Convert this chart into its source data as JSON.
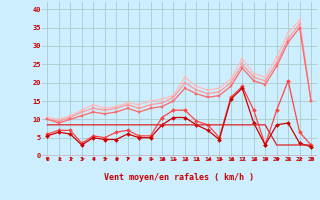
{
  "xlabel": "Vent moyen/en rafales ( km/h )",
  "background_color": "#cceeff",
  "grid_color": "#aacccc",
  "x_ticks": [
    0,
    1,
    2,
    3,
    4,
    5,
    6,
    7,
    8,
    9,
    10,
    11,
    12,
    13,
    14,
    15,
    16,
    17,
    18,
    19,
    20,
    21,
    22,
    23
  ],
  "y_ticks": [
    0,
    5,
    10,
    15,
    20,
    25,
    30,
    35,
    40
  ],
  "ylim": [
    0,
    42
  ],
  "xlim": [
    -0.5,
    23.5
  ],
  "series": [
    {
      "color": "#ffbbbb",
      "linewidth": 0.9,
      "marker": "s",
      "markersize": 2.0,
      "values": [
        10.5,
        10.0,
        11.0,
        12.5,
        14.0,
        13.0,
        13.5,
        14.5,
        14.0,
        15.0,
        15.5,
        16.5,
        21.5,
        19.0,
        18.0,
        18.5,
        21.0,
        26.5,
        22.5,
        21.5,
        27.0,
        33.5,
        37.0,
        15.0
      ]
    },
    {
      "color": "#ff9999",
      "linewidth": 0.9,
      "marker": "s",
      "markersize": 2.0,
      "values": [
        10.0,
        9.5,
        10.5,
        12.0,
        13.0,
        12.5,
        13.0,
        14.0,
        13.0,
        14.0,
        14.5,
        16.0,
        20.0,
        18.0,
        17.0,
        17.5,
        20.0,
        25.0,
        21.5,
        20.5,
        25.5,
        32.0,
        36.0,
        15.0
      ]
    },
    {
      "color": "#ff6666",
      "linewidth": 0.9,
      "marker": "s",
      "markersize": 2.0,
      "values": [
        10.0,
        9.0,
        10.0,
        11.0,
        12.0,
        11.5,
        12.0,
        13.0,
        12.0,
        13.0,
        13.5,
        15.0,
        18.5,
        17.0,
        16.0,
        16.5,
        19.0,
        24.0,
        20.5,
        19.5,
        24.5,
        31.0,
        35.0,
        15.0
      ]
    },
    {
      "color": "#ff4444",
      "linewidth": 0.9,
      "marker": "D",
      "markersize": 2.0,
      "values": [
        6.0,
        7.0,
        7.0,
        3.5,
        5.5,
        5.0,
        6.5,
        7.0,
        5.5,
        5.5,
        10.5,
        12.5,
        12.5,
        9.5,
        8.5,
        5.0,
        16.0,
        19.0,
        12.5,
        3.0,
        12.5,
        20.5,
        6.5,
        3.0
      ]
    },
    {
      "color": "#cc0000",
      "linewidth": 0.9,
      "marker": "D",
      "markersize": 2.0,
      "values": [
        5.5,
        6.5,
        6.0,
        3.0,
        5.0,
        4.5,
        4.5,
        6.0,
        5.0,
        5.0,
        8.5,
        10.5,
        10.5,
        8.5,
        7.0,
        4.5,
        15.5,
        18.5,
        9.0,
        3.0,
        8.5,
        9.0,
        3.5,
        2.5
      ]
    },
    {
      "color": "#dd2222",
      "linewidth": 0.9,
      "marker": null,
      "markersize": 0,
      "values": [
        8.5,
        8.5,
        8.5,
        8.5,
        8.5,
        8.5,
        8.5,
        8.5,
        8.5,
        8.5,
        8.5,
        8.5,
        8.5,
        8.5,
        8.5,
        8.5,
        8.5,
        8.5,
        8.5,
        8.5,
        3.0,
        3.0,
        3.0,
        3.0
      ]
    }
  ],
  "wind_arrow_angles": [
    180,
    210,
    210,
    215,
    200,
    210,
    215,
    200,
    215,
    225,
    240,
    230,
    240,
    250,
    245,
    235,
    245,
    250,
    240,
    215,
    215,
    215,
    215,
    215
  ]
}
